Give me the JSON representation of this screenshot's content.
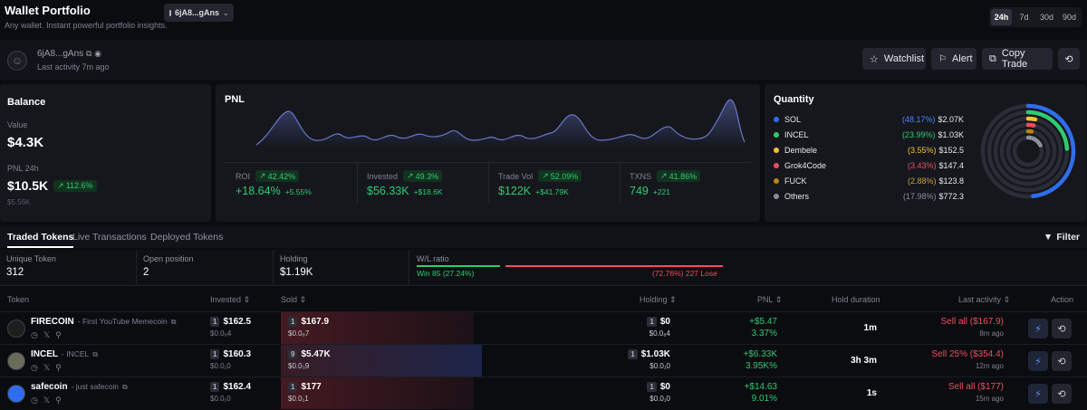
{
  "header": {
    "title": "Wallet Portfolio",
    "subtitle": "Any wallet. Instant powerful portfolio insights.",
    "wallet_pill": "6jA8...gAns",
    "time_tabs": [
      "24h",
      "7d",
      "30d",
      "90d"
    ],
    "active_tab": "24h"
  },
  "wallet": {
    "address": "6jA8...gAns",
    "last_activity": "Last activity 7m ago",
    "buttons": {
      "watchlist": "Watchlist",
      "alert": "Alert",
      "copy_trade": "Copy Trade"
    }
  },
  "balance": {
    "title": "Balance",
    "value_label": "Value",
    "value": "$4.3K",
    "pnl_label": "PNL 24h",
    "pnl_value": "$10.5K",
    "pnl_change": "112.6%",
    "pnl_prev": "$5.56K"
  },
  "pnl": {
    "title": "PNL",
    "stats": [
      {
        "label": "ROI",
        "chip": "42.42%",
        "value": "+18.64%",
        "delta": "+5.55%"
      },
      {
        "label": "Invested",
        "chip": "49.3%",
        "value": "$56.33K",
        "delta": "+$18.6K"
      },
      {
        "label": "Trade Vol",
        "chip": "52.09%",
        "value": "$122K",
        "delta": "+$41.79K"
      },
      {
        "label": "TXNS",
        "chip": "41.86%",
        "value": "749",
        "delta": "+221"
      }
    ]
  },
  "quantity": {
    "title": "Quantity",
    "items": [
      {
        "name": "SOL",
        "pct": "(48.17%)",
        "value": "$2.07K",
        "color": "#2f6df0",
        "fraction": 0.4817
      },
      {
        "name": "INCEL",
        "pct": "(23.99%)",
        "value": "$1.03K",
        "color": "#2ecc71",
        "fraction": 0.2399
      },
      {
        "name": "Dembele",
        "pct": "(3.55%)",
        "value": "$152.5",
        "color": "#f1c232",
        "fraction": 0.0355
      },
      {
        "name": "Grok4Code",
        "pct": "(3.43%)",
        "value": "$147.4",
        "color": "#f04d5e",
        "fraction": 0.0343
      },
      {
        "name": "FUCK",
        "pct": "(2.88%)",
        "value": "$123.8",
        "color": "#b8860b",
        "fraction": 0.0288
      },
      {
        "name": "Others",
        "pct": "(17.98%)",
        "value": "$772.3",
        "color": "#8a8f99",
        "fraction": 0.1798
      }
    ]
  },
  "tabs": {
    "traded": "Traded Tokens",
    "live": "Live Transactions",
    "deployed": "Deployed Tokens",
    "filter": "Filter"
  },
  "summary": {
    "unique_label": "Unique Token",
    "unique_value": "312",
    "open_label": "Open position",
    "open_value": "2",
    "holding_label": "Holding",
    "holding_value": "$1.19K",
    "wl_label": "W/L ratio",
    "win_text": "Win 85 (27.24%)",
    "lose_text": "(72.76%) 227 Lose",
    "win_fraction": 0.2724
  },
  "table": {
    "headers": {
      "token": "Token",
      "invested": "Invested",
      "sold": "Sold",
      "holding": "Holding",
      "pnl": "PNL",
      "hold_duration": "Hold duration",
      "last_activity": "Last activity",
      "action": "Action"
    },
    "rows": [
      {
        "name": "FIRECOIN",
        "desc": "- First YouTube Memecoin",
        "inv_count": "1",
        "invested": "$162.5",
        "invested_sub": "$0.0₈4",
        "sold_count": "1",
        "sold": "$167.9",
        "sold_sub": "$0.0₈7",
        "hold_count": "1",
        "holding": "$0",
        "holding_sub": "$0.0₈4",
        "pnl": "+$5.47",
        "pnl_pct": "3.37%",
        "duration": "1m",
        "activity": "Sell all ($167.9)",
        "activity_time": "8m ago",
        "avatar_color": "#1e1e1e",
        "sold_fraction": 0.96
      },
      {
        "name": "INCEL",
        "desc": "- INCEL",
        "inv_count": "1",
        "invested": "$160.3",
        "invested_sub": "$0.0₁0",
        "sold_count": "9",
        "sold": "$5.47K",
        "sold_sub": "$0.0₃9",
        "hold_count": "1",
        "holding": "$1.03K",
        "holding_sub": "$0.0₁0",
        "pnl": "+$6.33K",
        "pnl_pct": "3.95K%",
        "duration": "3h 3m",
        "activity": "Sell 25% ($354.4)",
        "activity_time": "12m ago",
        "avatar_color": "#6b6b5a",
        "sold_fraction": 1.0
      },
      {
        "name": "safecoin",
        "desc": "- just safecoin",
        "inv_count": "1",
        "invested": "$162.4",
        "invested_sub": "$0.0₁0",
        "sold_count": "1",
        "sold": "$177",
        "sold_sub": "$0.0₁1",
        "hold_count": "1",
        "holding": "$0",
        "holding_sub": "$0.0₁0",
        "pnl": "+$14.63",
        "pnl_pct": "9.01%",
        "duration": "1s",
        "activity": "Sell all ($177)",
        "activity_time": "15m ago",
        "avatar_color": "#2f6df0",
        "sold_fraction": 0.96
      }
    ]
  }
}
